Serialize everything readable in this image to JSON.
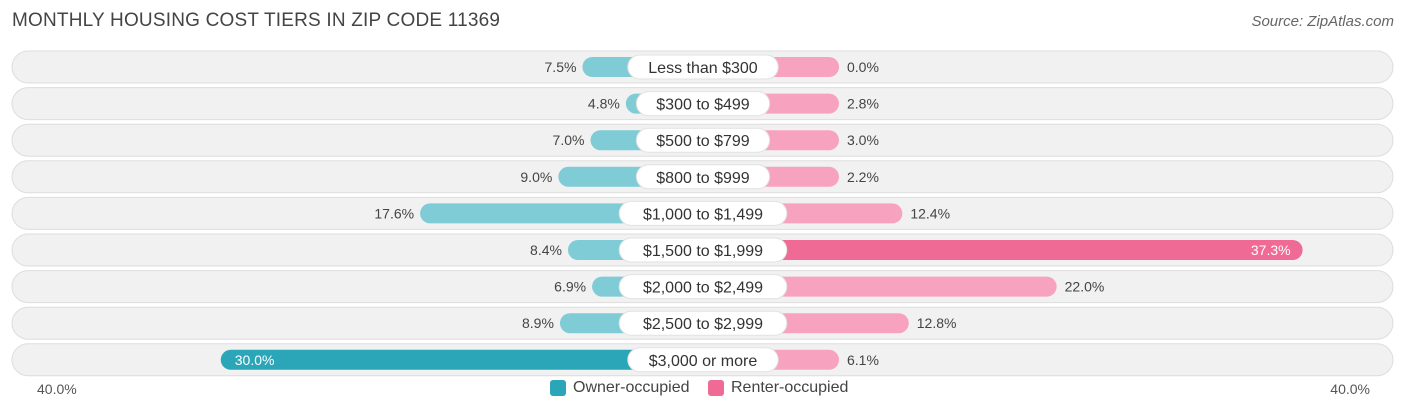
{
  "header": {
    "title": "MONTHLY HOUSING COST TIERS IN ZIP CODE 11369",
    "source": "Source: ZipAtlas.com"
  },
  "colors": {
    "owner_light": "#7fccd6",
    "owner_dark": "#2aa6b8",
    "renter_light": "#f7a3bf",
    "renter_dark": "#ef6a95",
    "row_bg": "#f1f1f1",
    "row_border": "#dddddd"
  },
  "chart_data": {
    "type": "bar",
    "orientation": "horizontal-diverging",
    "categories": [
      "Less than $300",
      "$300 to $499",
      "$500 to $799",
      "$800 to $999",
      "$1,000 to $1,499",
      "$1,500 to $1,999",
      "$2,000 to $2,499",
      "$2,500 to $2,999",
      "$3,000 or more"
    ],
    "series": [
      {
        "name": "Owner-occupied",
        "side": "left",
        "values": [
          7.5,
          4.8,
          7.0,
          9.0,
          17.6,
          8.4,
          6.9,
          8.9,
          30.0
        ],
        "labels": [
          "7.5%",
          "4.8%",
          "7.0%",
          "9.0%",
          "17.6%",
          "8.4%",
          "6.9%",
          "8.9%",
          "30.0%"
        ]
      },
      {
        "name": "Renter-occupied",
        "side": "right",
        "values": [
          0.0,
          2.8,
          3.0,
          2.2,
          12.4,
          37.3,
          22.0,
          12.8,
          6.1
        ],
        "labels": [
          "0.0%",
          "2.8%",
          "3.0%",
          "2.2%",
          "12.4%",
          "37.3%",
          "22.0%",
          "12.8%",
          "6.1%"
        ]
      }
    ],
    "xlim": [
      0,
      40
    ],
    "axis_left_label": "40.0%",
    "axis_right_label": "40.0%",
    "legend_placement": "bottom-center"
  }
}
